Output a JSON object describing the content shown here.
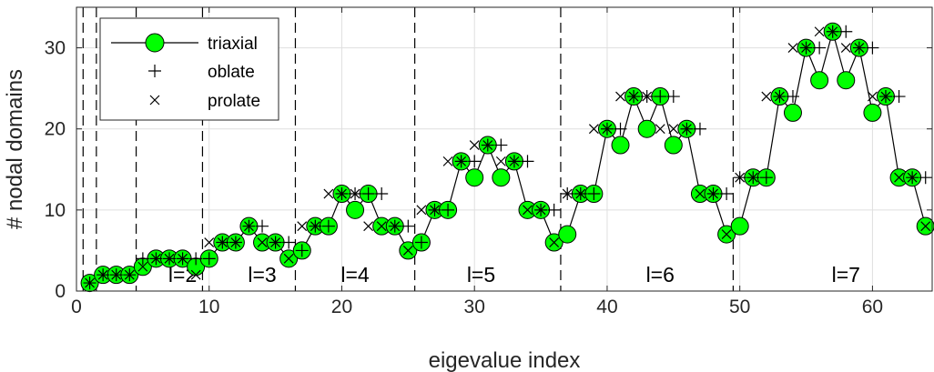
{
  "chart_data": {
    "type": "line",
    "xlabel": "eigevalue index",
    "ylabel": "# nodal domains",
    "xlim": [
      0,
      64.5
    ],
    "ylim": [
      0,
      35
    ],
    "xticks": [
      0,
      10,
      20,
      30,
      40,
      50,
      60
    ],
    "yticks": [
      0,
      10,
      20,
      30
    ],
    "grid": true,
    "legend_position": "top-left",
    "vlines": [
      0.5,
      1.5,
      4.5,
      9.5,
      16.5,
      25.5,
      36.5,
      49.5
    ],
    "region_labels": [
      {
        "text": "l=2",
        "x": 8,
        "y": 2
      },
      {
        "text": "l=3",
        "x": 14,
        "y": 2
      },
      {
        "text": "l=4",
        "x": 21,
        "y": 2
      },
      {
        "text": "l=5",
        "x": 30.5,
        "y": 2
      },
      {
        "text": "l=6",
        "x": 44,
        "y": 2
      },
      {
        "text": "l=7",
        "x": 58,
        "y": 2
      }
    ],
    "series": [
      {
        "name": "triaxial",
        "marker": "circle",
        "color": "#00ff00",
        "values": [
          1,
          2,
          2,
          2,
          3,
          4,
          4,
          4,
          3,
          4,
          6,
          6,
          8,
          6,
          6,
          4,
          5,
          8,
          8,
          12,
          10,
          12,
          8,
          8,
          5,
          6,
          10,
          10,
          16,
          14,
          18,
          14,
          16,
          10,
          10,
          6,
          7,
          12,
          12,
          20,
          18,
          24,
          20,
          24,
          18,
          20,
          12,
          12,
          7,
          8,
          14,
          14,
          24,
          22,
          30,
          26,
          32,
          26,
          30,
          22,
          24,
          14,
          14,
          8
        ]
      },
      {
        "name": "oblate",
        "marker": "plus",
        "color": "#000000",
        "points": [
          [
            1,
            1
          ],
          [
            2,
            2
          ],
          [
            3,
            2
          ],
          [
            4,
            2
          ],
          [
            5,
            4
          ],
          [
            6,
            4
          ],
          [
            7,
            4
          ],
          [
            8,
            4
          ],
          [
            9,
            4
          ],
          [
            10,
            4
          ],
          [
            11,
            6
          ],
          [
            12,
            6
          ],
          [
            13,
            8
          ],
          [
            14,
            8
          ],
          [
            15,
            6
          ],
          [
            16,
            6
          ],
          [
            17,
            5
          ],
          [
            18,
            8
          ],
          [
            19,
            8
          ],
          [
            20,
            12
          ],
          [
            21,
            12
          ],
          [
            22,
            12
          ],
          [
            23,
            12
          ],
          [
            24,
            8
          ],
          [
            25,
            8
          ],
          [
            26,
            6
          ],
          [
            27,
            10
          ],
          [
            28,
            10
          ],
          [
            29,
            16
          ],
          [
            30,
            16
          ],
          [
            31,
            18
          ],
          [
            32,
            18
          ],
          [
            33,
            16
          ],
          [
            34,
            16
          ],
          [
            35,
            10
          ],
          [
            36,
            10
          ],
          [
            37,
            12
          ],
          [
            38,
            12
          ],
          [
            39,
            12
          ],
          [
            40,
            20
          ],
          [
            41,
            20
          ],
          [
            42,
            24
          ],
          [
            43,
            24
          ],
          [
            44,
            24
          ],
          [
            45,
            24
          ],
          [
            46,
            20
          ],
          [
            47,
            20
          ],
          [
            48,
            12
          ],
          [
            49,
            12
          ],
          [
            50,
            14
          ],
          [
            51,
            14
          ],
          [
            52,
            14
          ],
          [
            53,
            24
          ],
          [
            54,
            24
          ],
          [
            55,
            30
          ],
          [
            56,
            30
          ],
          [
            57,
            32
          ],
          [
            58,
            32
          ],
          [
            59,
            30
          ],
          [
            60,
            30
          ],
          [
            61,
            24
          ],
          [
            62,
            24
          ],
          [
            63,
            14
          ],
          [
            64,
            14
          ]
        ]
      },
      {
        "name": "prolate",
        "marker": "x",
        "color": "#000000",
        "points": [
          [
            1,
            1
          ],
          [
            2,
            2
          ],
          [
            3,
            2
          ],
          [
            4,
            2
          ],
          [
            5,
            3
          ],
          [
            6,
            4
          ],
          [
            7,
            4
          ],
          [
            8,
            4
          ],
          [
            9,
            2
          ],
          [
            10,
            6
          ],
          [
            11,
            6
          ],
          [
            12,
            6
          ],
          [
            13,
            8
          ],
          [
            14,
            6
          ],
          [
            15,
            6
          ],
          [
            16,
            4
          ],
          [
            17,
            8
          ],
          [
            18,
            8
          ],
          [
            19,
            12
          ],
          [
            20,
            12
          ],
          [
            21,
            12
          ],
          [
            22,
            8
          ],
          [
            23,
            8
          ],
          [
            24,
            8
          ],
          [
            25,
            5
          ],
          [
            26,
            10
          ],
          [
            27,
            10
          ],
          [
            28,
            16
          ],
          [
            29,
            16
          ],
          [
            30,
            18
          ],
          [
            31,
            18
          ],
          [
            32,
            16
          ],
          [
            33,
            16
          ],
          [
            34,
            10
          ],
          [
            35,
            10
          ],
          [
            36,
            6
          ],
          [
            37,
            12
          ],
          [
            38,
            12
          ],
          [
            39,
            20
          ],
          [
            40,
            20
          ],
          [
            41,
            24
          ],
          [
            42,
            24
          ],
          [
            43,
            24
          ],
          [
            44,
            20
          ],
          [
            45,
            20
          ],
          [
            46,
            20
          ],
          [
            47,
            12
          ],
          [
            48,
            12
          ],
          [
            49,
            7
          ],
          [
            50,
            14
          ],
          [
            51,
            14
          ],
          [
            52,
            24
          ],
          [
            53,
            24
          ],
          [
            54,
            30
          ],
          [
            55,
            30
          ],
          [
            56,
            32
          ],
          [
            57,
            32
          ],
          [
            58,
            30
          ],
          [
            59,
            30
          ],
          [
            60,
            24
          ],
          [
            61,
            24
          ],
          [
            62,
            14
          ],
          [
            63,
            14
          ],
          [
            64,
            8
          ]
        ]
      }
    ]
  }
}
